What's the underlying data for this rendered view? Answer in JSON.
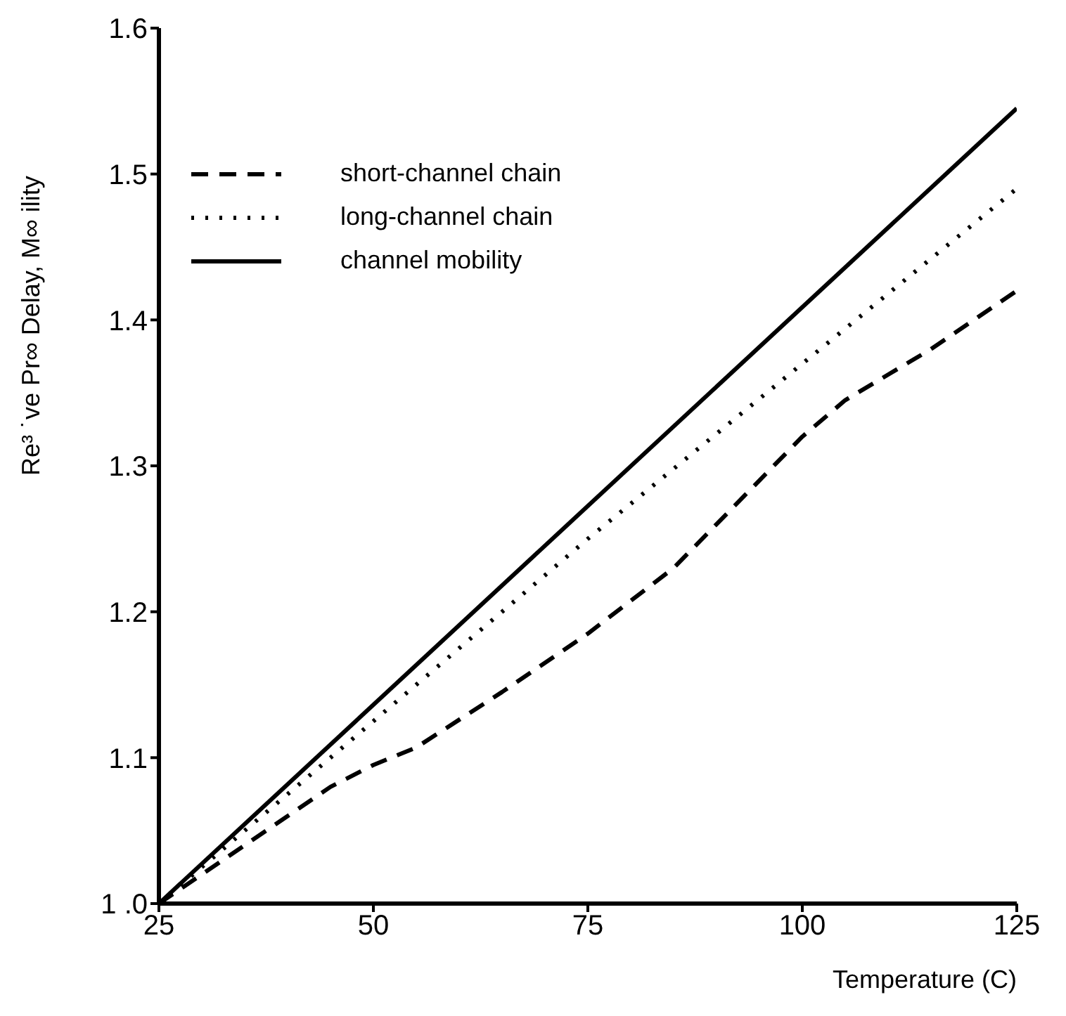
{
  "chart_data": {
    "type": "line",
    "xlabel": "Temperature  (C)",
    "ylabel": "Re³ ˙ve Pr∞ Delay, M∞ ility",
    "xlim": [
      25,
      125
    ],
    "xticks": [
      25,
      50,
      75,
      100,
      125
    ],
    "ylim": [
      1.0,
      1.6
    ],
    "yticks": [
      {
        "value": 1.0,
        "label": "1 .0"
      },
      1.1,
      1.2,
      1.3,
      1.4,
      1.5,
      1.6
    ],
    "grid": false,
    "legend": "top left",
    "series": [
      {
        "name": "short-channel chain",
        "color": "#000000",
        "line_style": "dashed",
        "x": [
          25,
          35,
          45,
          50,
          55,
          65,
          75,
          85,
          90,
          100,
          105,
          115,
          125
        ],
        "values": [
          1.0,
          1.04,
          1.08,
          1.095,
          1.107,
          1.145,
          1.185,
          1.23,
          1.26,
          1.32,
          1.345,
          1.38,
          1.42
        ]
      },
      {
        "name": "long-channel chain",
        "color": "#000000",
        "line_style": "dotted",
        "x": [
          25,
          50,
          60,
          75,
          100,
          125
        ],
        "values": [
          1.0,
          1.125,
          1.175,
          1.25,
          1.37,
          1.49
        ]
      },
      {
        "name": "channel mobility",
        "color": "#000000",
        "line_style": "solid",
        "x": [
          25,
          125
        ],
        "values": [
          1.0,
          1.545
        ]
      }
    ]
  }
}
